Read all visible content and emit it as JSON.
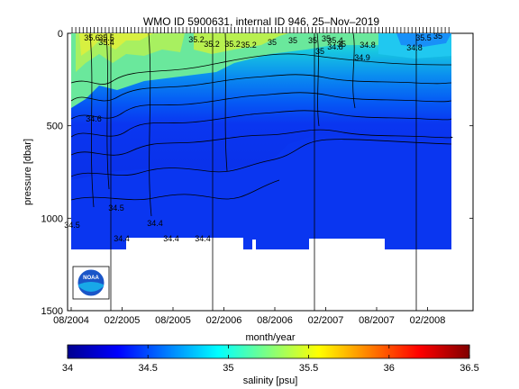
{
  "chart_data": {
    "type": "heatmap",
    "title": "WMO ID 5900631, internal ID 946, 25–Nov–2019",
    "xlabel": "month/year",
    "ylabel": "pressure [dbar]",
    "x_tick_labels": [
      "08/2004",
      "02/2005",
      "08/2005",
      "02/2006",
      "08/2006",
      "02/2007",
      "08/2007",
      "02/2008"
    ],
    "y_ticks": [
      0,
      500,
      1000,
      1500
    ],
    "ylim": [
      0,
      1500
    ],
    "y_reversed": true,
    "grid": false,
    "profile_ticks_top": true,
    "colorbar": {
      "label": "salinity [psu]",
      "ticks": [
        34,
        34.5,
        35,
        35.5,
        36,
        36.5
      ],
      "range": [
        34,
        36.5
      ],
      "colormap": "jet"
    },
    "contour_labels": [
      "35.6",
      "35.5",
      "35.4",
      "35.2",
      "35.2",
      "35.2",
      "35.2",
      "35",
      "35",
      "35",
      "35",
      "35.4",
      "35",
      "35",
      "34.8",
      "34.9",
      "34.8",
      "35.5",
      "34.6",
      "34.5",
      "34.4",
      "34.4",
      "34.4",
      "34.4",
      "34.5",
      "34.8",
      "35"
    ],
    "data_depth_max": 1170,
    "logo": "NOAA"
  }
}
